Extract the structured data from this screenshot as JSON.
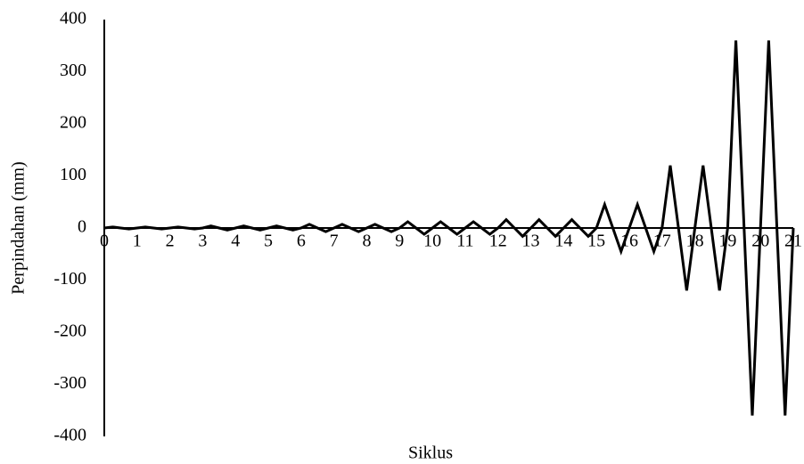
{
  "chart_data": {
    "type": "line",
    "xlabel": "Siklus",
    "ylabel": "Perpindahan (mm)",
    "x": [
      0,
      0.25,
      0.5,
      0.75,
      1,
      1.25,
      1.5,
      1.75,
      2,
      2.25,
      2.5,
      2.75,
      3,
      3.25,
      3.5,
      3.75,
      4,
      4.25,
      4.5,
      4.75,
      5,
      5.25,
      5.5,
      5.75,
      6,
      6.25,
      6.5,
      6.75,
      7,
      7.25,
      7.5,
      7.75,
      8,
      8.25,
      8.5,
      8.75,
      9,
      9.25,
      9.5,
      9.75,
      10,
      10.25,
      10.5,
      10.75,
      11,
      11.25,
      11.5,
      11.75,
      12,
      12.25,
      12.5,
      12.75,
      13,
      13.25,
      13.5,
      13.75,
      14,
      14.25,
      14.5,
      14.75,
      15,
      15.25,
      15.5,
      15.75,
      16,
      16.25,
      16.5,
      16.75,
      17,
      17.25,
      17.5,
      17.75,
      18,
      18.25,
      18.5,
      18.75,
      19,
      19.25,
      19.5,
      19.75,
      20,
      20.25,
      20.5,
      20.75,
      21
    ],
    "series": [
      {
        "name": "Perpindahan",
        "color": "#000000",
        "values": [
          0,
          2,
          0,
          -2,
          0,
          2,
          0,
          -2,
          0,
          2,
          0,
          -2,
          0,
          4,
          0,
          -4,
          0,
          4,
          0,
          -4,
          0,
          4,
          0,
          -4,
          0,
          7,
          0,
          -7,
          0,
          7,
          0,
          -7,
          0,
          7,
          0,
          -7,
          0,
          12,
          0,
          -12,
          0,
          12,
          0,
          -12,
          0,
          12,
          0,
          -12,
          0,
          16,
          0,
          -16,
          0,
          16,
          0,
          -16,
          0,
          16,
          0,
          -16,
          0,
          45,
          0,
          -45,
          0,
          45,
          0,
          -45,
          0,
          120,
          0,
          -120,
          0,
          120,
          0,
          -120,
          0,
          360,
          0,
          -360,
          0,
          360,
          0,
          -360,
          0
        ]
      }
    ],
    "xlim": [
      0,
      21
    ],
    "xticks": [
      0,
      1,
      2,
      3,
      4,
      5,
      6,
      7,
      8,
      9,
      10,
      11,
      12,
      13,
      14,
      15,
      16,
      17,
      18,
      19,
      20,
      21
    ],
    "ylim": [
      -400,
      400
    ],
    "yticks": [
      -400,
      -300,
      -200,
      -100,
      0,
      100,
      200,
      300,
      400
    ],
    "grid": false
  }
}
